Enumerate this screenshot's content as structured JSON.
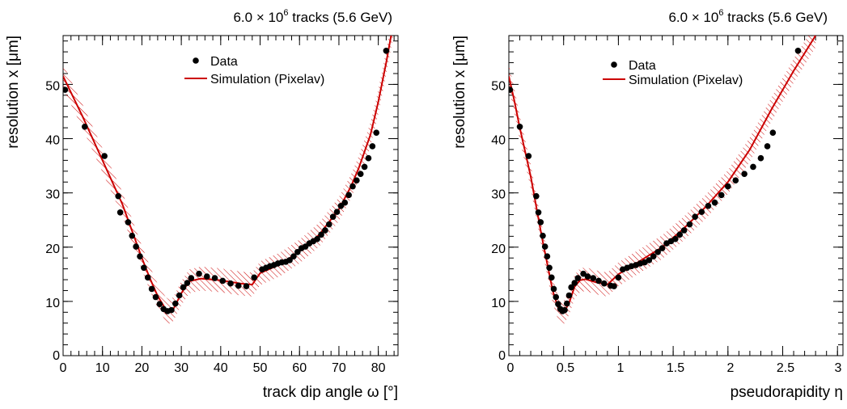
{
  "chart_data": [
    {
      "type": "scatter",
      "title_main": "6.0 × 10",
      "title_exp": "6",
      "title_rest": " tracks (5.6 GeV)",
      "xlabel": "track dip angle ω [°]",
      "ylabel": "resolution x  [μm]",
      "xlim": [
        0,
        85
      ],
      "ylim": [
        0,
        59
      ],
      "x_ticks": [
        0,
        10,
        20,
        30,
        40,
        50,
        60,
        70,
        80
      ],
      "x_tick_labels": [
        "0",
        "10",
        "20",
        "30",
        "40",
        "50",
        "60",
        "70",
        "80"
      ],
      "y_ticks": [
        0,
        10,
        20,
        30,
        40,
        50
      ],
      "y_tick_labels": [
        "0",
        "10",
        "20",
        "30",
        "40",
        "50"
      ],
      "legend": {
        "position": "top-center",
        "entries": [
          "Data",
          "Simulation (Pixelav)"
        ]
      },
      "colors": {
        "data": "#000000",
        "simulation": "#cc0000"
      },
      "series": [
        {
          "name": "Data",
          "kind": "points",
          "x": [
            0.5,
            5.5,
            10.5,
            14,
            14.5,
            16.5,
            17.5,
            18.5,
            19.5,
            20.5,
            21.5,
            22.5,
            23.5,
            24.5,
            25.5,
            26.5,
            27.5,
            28.5,
            29.5,
            30.5,
            31.5,
            32.5,
            34.5,
            36.5,
            38.5,
            40.5,
            42.5,
            44.5,
            46.5,
            48.5,
            50.5,
            51.5,
            52.5,
            53.5,
            54.5,
            55.5,
            56.5,
            57.5,
            58.5,
            59.5,
            60.5,
            61.5,
            62.5,
            63.5,
            64.5,
            65.5,
            66.5,
            67.5,
            68.5,
            69.5,
            70.5,
            71.5,
            72.5,
            73.5,
            74.5,
            75.5,
            76.5,
            77.5,
            78.5,
            79.5,
            82
          ],
          "y": [
            49,
            42.2,
            36.8,
            29.4,
            26.4,
            24.6,
            22.1,
            20.1,
            18.3,
            16.2,
            14.4,
            12.3,
            10.8,
            9.5,
            8.6,
            8.2,
            8.4,
            9.6,
            11.1,
            12.6,
            13.4,
            14.3,
            15.1,
            14.6,
            14.3,
            13.8,
            13.3,
            12.9,
            12.8,
            14.4,
            15.9,
            16.2,
            16.5,
            16.7,
            17,
            17.2,
            17.3,
            17.6,
            18.3,
            19.1,
            19.8,
            20.1,
            20.7,
            21.1,
            21.5,
            22.3,
            23.1,
            24.2,
            25.6,
            26.5,
            27.6,
            28.2,
            29.6,
            31.2,
            32.3,
            33.5,
            34.8,
            36.4,
            38.6,
            41.1,
            56.2
          ]
        },
        {
          "name": "Simulation (Pixelav)",
          "kind": "line_band",
          "x": [
            0,
            5,
            10,
            15,
            20,
            22,
            24,
            26,
            27,
            28,
            30,
            32,
            35,
            40,
            45,
            48,
            50,
            55,
            60,
            65,
            70,
            73,
            75,
            78,
            80,
            82,
            84
          ],
          "y": [
            51.5,
            44,
            36,
            28,
            18,
            14.3,
            11,
            8.6,
            8.1,
            8.6,
            11.5,
            13.7,
            14.2,
            13.9,
            13.3,
            13.1,
            15.2,
            16.8,
            19.2,
            22.3,
            27,
            31.1,
            34.5,
            40.7,
            46.8,
            54,
            62
          ]
        }
      ]
    },
    {
      "type": "scatter",
      "title_main": "6.0 × 10",
      "title_exp": "6",
      "title_rest": " tracks (5.6 GeV)",
      "xlabel": "pseudorapidity η",
      "ylabel": "resolution x  [μm]",
      "xlim": [
        0,
        3.05
      ],
      "ylim": [
        0,
        59
      ],
      "x_ticks": [
        0,
        0.5,
        1,
        1.5,
        2,
        2.5,
        3
      ],
      "x_tick_labels": [
        "0",
        "0.5",
        "1",
        "1.5",
        "2",
        "2.5",
        "3"
      ],
      "y_ticks": [
        0,
        10,
        20,
        30,
        40,
        50
      ],
      "y_tick_labels": [
        "0",
        "10",
        "20",
        "30",
        "40",
        "50"
      ],
      "legend": {
        "position": "top-center",
        "entries": [
          "Data",
          "Simulation (Pixelav)"
        ]
      },
      "colors": {
        "data": "#000000",
        "simulation": "#cc0000"
      },
      "series": [
        {
          "name": "Data",
          "kind": "points",
          "x": [
            0.01,
            0.1,
            0.18,
            0.25,
            0.27,
            0.29,
            0.31,
            0.33,
            0.35,
            0.37,
            0.39,
            0.41,
            0.43,
            0.45,
            0.47,
            0.49,
            0.51,
            0.53,
            0.55,
            0.57,
            0.6,
            0.63,
            0.68,
            0.72,
            0.77,
            0.82,
            0.87,
            0.93,
            0.96,
            1,
            1.04,
            1.08,
            1.12,
            1.16,
            1.2,
            1.24,
            1.28,
            1.32,
            1.36,
            1.4,
            1.44,
            1.48,
            1.52,
            1.56,
            1.6,
            1.65,
            1.7,
            1.76,
            1.82,
            1.88,
            1.94,
            2,
            2.07,
            2.15,
            2.23,
            2.3,
            2.36,
            2.41,
            2.64
          ],
          "y": [
            49,
            42.2,
            36.8,
            29.4,
            26.4,
            24.6,
            22.1,
            20.1,
            18.3,
            16.2,
            14.4,
            12.3,
            10.8,
            9.5,
            8.6,
            8.2,
            8.4,
            9.6,
            11.1,
            12.6,
            13.4,
            14.3,
            15.1,
            14.6,
            14.3,
            13.8,
            13.3,
            12.9,
            12.8,
            14.4,
            15.9,
            16.2,
            16.5,
            16.7,
            17,
            17.2,
            17.6,
            18.3,
            19.1,
            19.8,
            20.7,
            21.1,
            21.5,
            22.3,
            23.1,
            24.2,
            25.6,
            26.5,
            27.6,
            28.2,
            29.6,
            31.2,
            32.3,
            33.5,
            34.8,
            36.4,
            38.6,
            41.1,
            56.2
          ]
        },
        {
          "name": "Simulation (Pixelav)",
          "kind": "line_band",
          "x": [
            0,
            0.05,
            0.1,
            0.2,
            0.3,
            0.4,
            0.45,
            0.5,
            0.55,
            0.6,
            0.65,
            0.7,
            0.8,
            0.9,
            1,
            1.2,
            1.4,
            1.6,
            1.8,
            2,
            2.2,
            2.4,
            2.6,
            2.8
          ],
          "y": [
            51.5,
            47,
            42,
            33,
            22,
            12,
            8.8,
            7.9,
            9.7,
            12.7,
            13.9,
            14.1,
            13.5,
            13.1,
            15,
            17.5,
            20,
            23.5,
            27.5,
            32,
            38,
            45.5,
            52.5,
            59
          ]
        }
      ]
    }
  ]
}
